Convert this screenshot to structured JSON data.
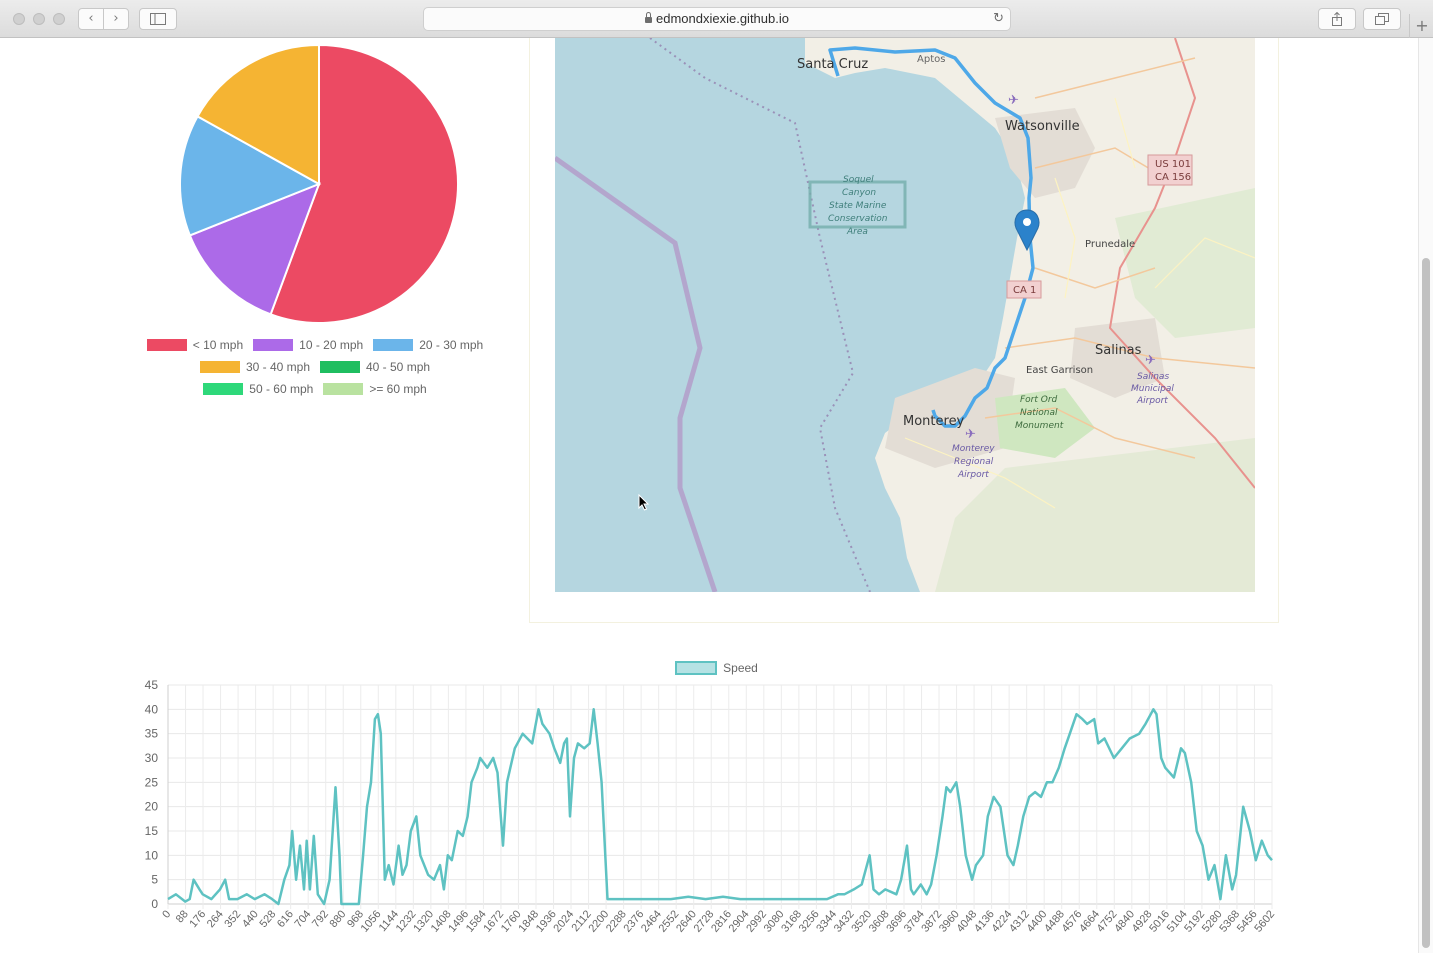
{
  "browser": {
    "url": "edmondxiexie.github.io",
    "back_glyph": "‹",
    "forward_glyph": "›",
    "new_tab_glyph": "+"
  },
  "speed_pie": {
    "legend": [
      {
        "label": "< 10 mph",
        "color": "#ec4a63"
      },
      {
        "label": "10 - 20 mph",
        "color": "#ac6ae8"
      },
      {
        "label": "20 - 30 mph",
        "color": "#6bb5ea"
      },
      {
        "label": "30 - 40 mph",
        "color": "#f5b433"
      },
      {
        "label": "40 - 50 mph",
        "color": "#1fbe60"
      },
      {
        "label": "50 - 60 mph",
        "color": "#2ed87a"
      },
      {
        "label": ">= 60 mph",
        "color": "#b9e2a0"
      }
    ]
  },
  "map": {
    "labels": {
      "santa_cruz": "Santa Cruz",
      "aptos": "Aptos",
      "watsonville": "Watsonville",
      "us101": "US 101",
      "ca156": "CA 156",
      "soquel1": "Soquel",
      "soquel2": "Canyon",
      "soquel3": "State Marine",
      "soquel4": "Conservation",
      "soquel5": "Area",
      "prunedale": "Prunedale",
      "ca1": "CA 1",
      "salinas": "Salinas",
      "east_garrison": "East Garrison",
      "salinas_airport1": "Salinas",
      "salinas_airport2": "Municipal",
      "salinas_airport3": "Airport",
      "fort_ord1": "Fort Ord",
      "fort_ord2": "National",
      "fort_ord3": "Monument",
      "monterey": "Monterey",
      "monterey_airport1": "Monterey",
      "monterey_airport2": "Regional",
      "monterey_airport3": "Airport"
    }
  },
  "chart_data": [
    {
      "type": "pie",
      "title": "",
      "categories": [
        "< 10 mph",
        "10 - 20 mph",
        "20 - 30 mph",
        "30 - 40 mph",
        "40 - 50 mph",
        "50 - 60 mph",
        ">= 60 mph"
      ],
      "values": [
        55.6,
        13.3,
        14.1,
        16.9,
        0,
        0,
        0
      ],
      "legend_position": "bottom"
    },
    {
      "type": "line",
      "title": "",
      "xlabel": "",
      "ylabel": "",
      "legend_position": "top",
      "series": [
        {
          "name": "Speed",
          "color": "#5ec2c2"
        }
      ],
      "ylim": [
        0,
        45
      ],
      "yticks": [
        0,
        5,
        10,
        15,
        20,
        25,
        30,
        35,
        40,
        45
      ],
      "xlim": [
        0,
        5602
      ],
      "xticks": [
        "0",
        "88",
        "176",
        "264",
        "352",
        "440",
        "528",
        "616",
        "704",
        "792",
        "880",
        "968",
        "1056",
        "1144",
        "1232",
        "1320",
        "1408",
        "1496",
        "1584",
        "1672",
        "1760",
        "1848",
        "1936",
        "2024",
        "2112",
        "2200",
        "2288",
        "2376",
        "2464",
        "2552",
        "2640",
        "2728",
        "2816",
        "2904",
        "2992",
        "3080",
        "3168",
        "3256",
        "3344",
        "3432",
        "3520",
        "3608",
        "3696",
        "3784",
        "3872",
        "3960",
        "4048",
        "4136",
        "4224",
        "4312",
        "4400",
        "4488",
        "4576",
        "4664",
        "4752",
        "4840",
        "4928",
        "5016",
        "5104",
        "5192",
        "5280",
        "5368",
        "5456",
        "5602"
      ],
      "points": [
        [
          0,
          1
        ],
        [
          40,
          2
        ],
        [
          88,
          0.5
        ],
        [
          110,
          1
        ],
        [
          130,
          5
        ],
        [
          160,
          3
        ],
        [
          176,
          2
        ],
        [
          220,
          1
        ],
        [
          264,
          3
        ],
        [
          290,
          5
        ],
        [
          310,
          1
        ],
        [
          352,
          1
        ],
        [
          400,
          2
        ],
        [
          440,
          1
        ],
        [
          490,
          2
        ],
        [
          528,
          1
        ],
        [
          560,
          0
        ],
        [
          590,
          5
        ],
        [
          616,
          8
        ],
        [
          630,
          15
        ],
        [
          650,
          5
        ],
        [
          670,
          12
        ],
        [
          690,
          3
        ],
        [
          704,
          13
        ],
        [
          720,
          3
        ],
        [
          740,
          14
        ],
        [
          760,
          2
        ],
        [
          792,
          0
        ],
        [
          820,
          5
        ],
        [
          850,
          24
        ],
        [
          870,
          10
        ],
        [
          880,
          0
        ],
        [
          920,
          0
        ],
        [
          968,
          0
        ],
        [
          990,
          10
        ],
        [
          1010,
          20
        ],
        [
          1030,
          25
        ],
        [
          1050,
          38
        ],
        [
          1065,
          39
        ],
        [
          1080,
          35
        ],
        [
          1100,
          5
        ],
        [
          1120,
          8
        ],
        [
          1144,
          4
        ],
        [
          1170,
          12
        ],
        [
          1190,
          6
        ],
        [
          1210,
          8
        ],
        [
          1232,
          15
        ],
        [
          1260,
          18
        ],
        [
          1280,
          10
        ],
        [
          1300,
          8
        ],
        [
          1320,
          6
        ],
        [
          1350,
          5
        ],
        [
          1380,
          8
        ],
        [
          1400,
          3
        ],
        [
          1420,
          10
        ],
        [
          1440,
          9
        ],
        [
          1470,
          15
        ],
        [
          1496,
          14
        ],
        [
          1520,
          18
        ],
        [
          1540,
          25
        ],
        [
          1570,
          28
        ],
        [
          1584,
          30
        ],
        [
          1620,
          28
        ],
        [
          1650,
          30
        ],
        [
          1672,
          27
        ],
        [
          1700,
          12
        ],
        [
          1720,
          25
        ],
        [
          1760,
          32
        ],
        [
          1800,
          35
        ],
        [
          1848,
          33
        ],
        [
          1880,
          40
        ],
        [
          1900,
          37
        ],
        [
          1936,
          35
        ],
        [
          1960,
          32
        ],
        [
          1990,
          29
        ],
        [
          2010,
          33
        ],
        [
          2024,
          34
        ],
        [
          2040,
          18
        ],
        [
          2060,
          30
        ],
        [
          2080,
          33
        ],
        [
          2112,
          32
        ],
        [
          2140,
          33
        ],
        [
          2160,
          40
        ],
        [
          2180,
          33
        ],
        [
          2200,
          25
        ],
        [
          2230,
          1
        ],
        [
          2288,
          1
        ],
        [
          2376,
          1
        ],
        [
          2464,
          1
        ],
        [
          2552,
          1
        ],
        [
          2640,
          1.5
        ],
        [
          2728,
          1
        ],
        [
          2816,
          1.5
        ],
        [
          2904,
          1
        ],
        [
          2992,
          1
        ],
        [
          3080,
          1
        ],
        [
          3168,
          1
        ],
        [
          3256,
          1
        ],
        [
          3344,
          1
        ],
        [
          3400,
          2
        ],
        [
          3432,
          2
        ],
        [
          3480,
          3
        ],
        [
          3520,
          4
        ],
        [
          3560,
          10
        ],
        [
          3580,
          3
        ],
        [
          3608,
          2
        ],
        [
          3640,
          3
        ],
        [
          3696,
          2
        ],
        [
          3720,
          5
        ],
        [
          3750,
          12
        ],
        [
          3770,
          3
        ],
        [
          3784,
          2
        ],
        [
          3820,
          4
        ],
        [
          3850,
          2
        ],
        [
          3872,
          4
        ],
        [
          3900,
          10
        ],
        [
          3930,
          18
        ],
        [
          3950,
          24
        ],
        [
          3970,
          23
        ],
        [
          4000,
          25
        ],
        [
          4020,
          20
        ],
        [
          4048,
          10
        ],
        [
          4080,
          5
        ],
        [
          4100,
          8
        ],
        [
          4136,
          10
        ],
        [
          4160,
          18
        ],
        [
          4190,
          22
        ],
        [
          4224,
          20
        ],
        [
          4260,
          10
        ],
        [
          4290,
          8
        ],
        [
          4312,
          12
        ],
        [
          4340,
          18
        ],
        [
          4370,
          22
        ],
        [
          4400,
          23
        ],
        [
          4430,
          22
        ],
        [
          4460,
          25
        ],
        [
          4488,
          25
        ],
        [
          4520,
          28
        ],
        [
          4550,
          32
        ],
        [
          4576,
          35
        ],
        [
          4610,
          39
        ],
        [
          4640,
          38
        ],
        [
          4664,
          37
        ],
        [
          4700,
          38
        ],
        [
          4720,
          33
        ],
        [
          4752,
          34
        ],
        [
          4800,
          30
        ],
        [
          4840,
          32
        ],
        [
          4880,
          34
        ],
        [
          4928,
          35
        ],
        [
          4960,
          37
        ],
        [
          5000,
          40
        ],
        [
          5016,
          39
        ],
        [
          5040,
          30
        ],
        [
          5060,
          28
        ],
        [
          5104,
          26
        ],
        [
          5140,
          32
        ],
        [
          5160,
          31
        ],
        [
          5192,
          25
        ],
        [
          5220,
          15
        ],
        [
          5250,
          12
        ],
        [
          5280,
          5
        ],
        [
          5310,
          8
        ],
        [
          5340,
          1
        ],
        [
          5368,
          10
        ],
        [
          5400,
          3
        ],
        [
          5420,
          6
        ],
        [
          5456,
          20
        ],
        [
          5490,
          15
        ],
        [
          5520,
          9
        ],
        [
          5550,
          13
        ],
        [
          5580,
          10
        ],
        [
          5602,
          9
        ]
      ]
    }
  ]
}
